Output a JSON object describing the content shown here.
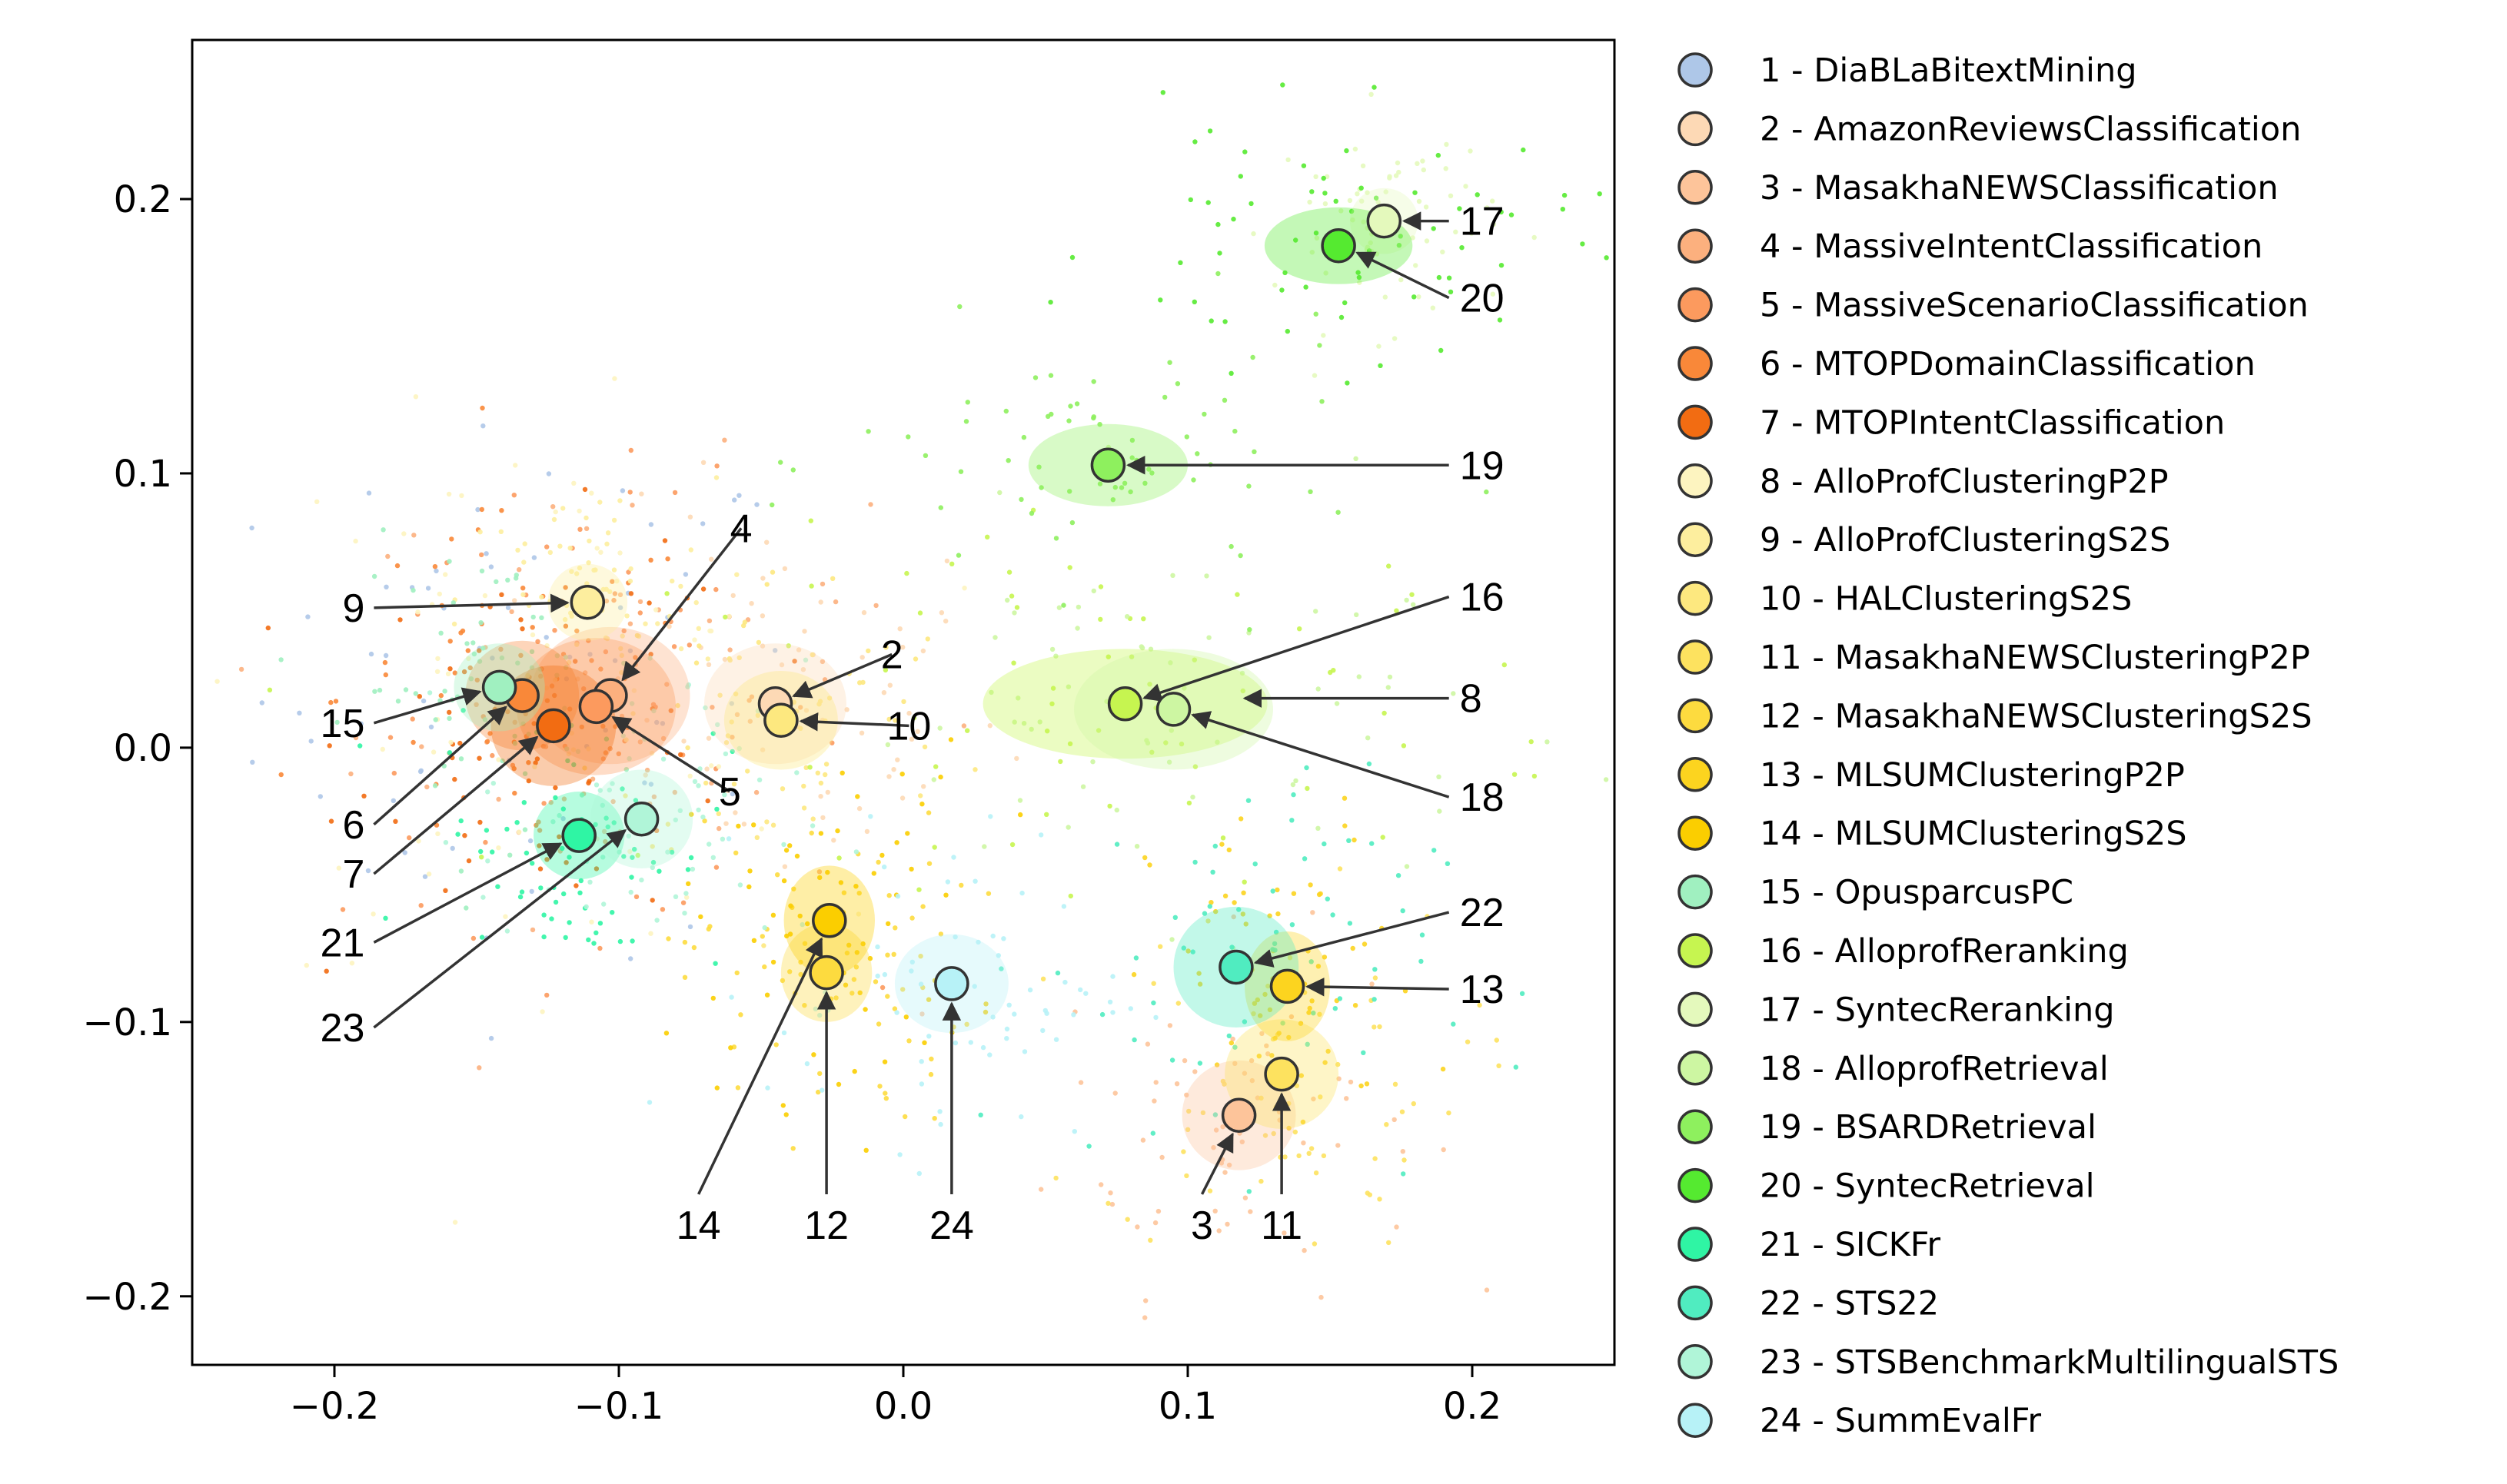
{
  "chart_data": {
    "type": "scatter",
    "title": "",
    "xlabel": "",
    "ylabel": "",
    "xlim": [
      -0.25,
      0.25
    ],
    "ylim": [
      -0.225,
      0.258
    ],
    "xticks": [
      {
        "value": -0.2,
        "label": "−0.2"
      },
      {
        "value": -0.1,
        "label": "−0.1"
      },
      {
        "value": 0.0,
        "label": "0.0"
      },
      {
        "value": 0.1,
        "label": "0.1"
      },
      {
        "value": 0.2,
        "label": "0.2"
      }
    ],
    "yticks": [
      {
        "value": -0.2,
        "label": "−0.2"
      },
      {
        "value": -0.1,
        "label": "−0.1"
      },
      {
        "value": 0.0,
        "label": "0.0"
      },
      {
        "value": 0.1,
        "label": "0.1"
      },
      {
        "value": 0.2,
        "label": "0.2"
      }
    ],
    "legend_position": "outside-right",
    "series": [
      {
        "id": 1,
        "name": "DiaBLaBitextMining",
        "label": "1 - DiaBLaBitextMining",
        "color": "#aec7e8",
        "x": null,
        "y": null
      },
      {
        "id": 2,
        "name": "AmazonReviewsClassification",
        "label": "2 - AmazonReviewsClassification",
        "color": "#fdd9b5",
        "x": -0.045,
        "y": 0.016,
        "sx": 0.025,
        "sy": 0.022
      },
      {
        "id": 3,
        "name": "MasakhaNEWSClassification",
        "label": "3 - MasakhaNEWSClassification",
        "color": "#fdc49a",
        "x": 0.118,
        "y": -0.134,
        "sx": 0.02,
        "sy": 0.02
      },
      {
        "id": 4,
        "name": "MassiveIntentClassification",
        "label": "4 - MassiveIntentClassification",
        "color": "#fcb07e",
        "x": -0.103,
        "y": 0.019,
        "sx": 0.028,
        "sy": 0.025
      },
      {
        "id": 5,
        "name": "MassiveScenarioClassification",
        "label": "5 - MassiveScenarioClassification",
        "color": "#fc9a5e",
        "x": -0.108,
        "y": 0.015,
        "sx": 0.028,
        "sy": 0.025
      },
      {
        "id": 6,
        "name": "MTOPDomainClassification",
        "label": "6 - MTOPDomainClassification",
        "color": "#f98839",
        "x": -0.134,
        "y": 0.019,
        "sx": 0.02,
        "sy": 0.02
      },
      {
        "id": 7,
        "name": "MTOPIntentClassification",
        "label": "7 - MTOPIntentClassification",
        "color": "#f26c12",
        "x": -0.123,
        "y": 0.008,
        "sx": 0.022,
        "sy": 0.022
      },
      {
        "id": 8,
        "name": "AlloProfClusteringP2P",
        "label": "8 - AlloProfClusteringP2P",
        "color": "#fdf4c0",
        "x": null,
        "y": null
      },
      {
        "id": 9,
        "name": "AlloProfClusteringS2S",
        "label": "9 - AlloProfClusteringS2S",
        "color": "#fdee9e",
        "x": -0.111,
        "y": 0.053,
        "sx": 0.014,
        "sy": 0.014
      },
      {
        "id": 10,
        "name": "HALClusteringS2S",
        "label": "10 - HALClusteringS2S",
        "color": "#fde87f",
        "x": -0.043,
        "y": 0.01,
        "sx": 0.02,
        "sy": 0.018
      },
      {
        "id": 11,
        "name": "MasakhaNEWSClusteringP2P",
        "label": "11 - MasakhaNEWSClusteringP2P",
        "color": "#fde25f",
        "x": 0.133,
        "y": -0.119,
        "sx": 0.02,
        "sy": 0.02
      },
      {
        "id": 12,
        "name": "MasakhaNEWSClusteringS2S",
        "label": "12 - MasakhaNEWSClusteringS2S",
        "color": "#fddb3f",
        "x": -0.027,
        "y": -0.082,
        "sx": 0.016,
        "sy": 0.018
      },
      {
        "id": 13,
        "name": "MLSUMClusteringP2P",
        "label": "13 - MLSUMClusteringP2P",
        "color": "#fcd41f",
        "x": 0.135,
        "y": -0.087,
        "sx": 0.015,
        "sy": 0.02
      },
      {
        "id": 14,
        "name": "MLSUMClusteringS2S",
        "label": "14 - MLSUMClusteringS2S",
        "color": "#fbce00",
        "x": -0.026,
        "y": -0.063,
        "sx": 0.016,
        "sy": 0.02
      },
      {
        "id": 15,
        "name": "OpusparcusPC",
        "label": "15 - OpusparcusPC",
        "color": "#a0f0c0",
        "x": -0.142,
        "y": 0.022,
        "sx": 0.016,
        "sy": 0.016
      },
      {
        "id": 16,
        "name": "AlloprofReranking",
        "label": "16 - AlloprofReranking",
        "color": "#c6f550",
        "x": 0.078,
        "y": 0.016,
        "sx": 0.05,
        "sy": 0.02
      },
      {
        "id": 17,
        "name": "SyntecReranking",
        "label": "17 - SyntecReranking",
        "color": "#e4f9bc",
        "x": 0.169,
        "y": 0.192,
        "sx": 0.012,
        "sy": 0.012
      },
      {
        "id": 18,
        "name": "AlloprofRetrieval",
        "label": "18 - AlloprofRetrieval",
        "color": "#cdf6a2",
        "x": 0.095,
        "y": 0.014,
        "sx": 0.035,
        "sy": 0.022
      },
      {
        "id": 19,
        "name": "BSARDRetrieval",
        "label": "19 - BSARDRetrieval",
        "color": "#8ef05e",
        "x": 0.072,
        "y": 0.103,
        "sx": 0.028,
        "sy": 0.015
      },
      {
        "id": 20,
        "name": "SyntecRetrieval",
        "label": "20 - SyntecRetrieval",
        "color": "#55ea30",
        "x": 0.153,
        "y": 0.183,
        "sx": 0.026,
        "sy": 0.014
      },
      {
        "id": 21,
        "name": "SICKFr",
        "label": "21 - SICKFr",
        "color": "#2ff5a4",
        "x": -0.114,
        "y": -0.032,
        "sx": 0.016,
        "sy": 0.016
      },
      {
        "id": 22,
        "name": "STS22",
        "label": "22 - STS22",
        "color": "#50ecc0",
        "x": 0.117,
        "y": -0.08,
        "sx": 0.022,
        "sy": 0.022
      },
      {
        "id": 23,
        "name": "STSBenchmarkMultilingualSTS",
        "label": "23 - STSBenchmarkMultilingualSTS",
        "color": "#b0f5d8",
        "x": -0.092,
        "y": -0.026,
        "sx": 0.018,
        "sy": 0.018
      },
      {
        "id": 24,
        "name": "SummEvalFr",
        "label": "24 - SummEvalFr",
        "color": "#b7f2f7",
        "x": 0.017,
        "y": -0.086,
        "sx": 0.02,
        "sy": 0.018
      }
    ],
    "annotations": [
      {
        "text": "2",
        "target": 2,
        "tx": -0.004,
        "ty": 0.034
      },
      {
        "text": "3",
        "target": 3,
        "tx": 0.105,
        "ty": -0.174
      },
      {
        "text": "4",
        "target": 4,
        "tx": -0.057,
        "ty": 0.08
      },
      {
        "text": "5",
        "target": 5,
        "tx": -0.061,
        "ty": -0.016
      },
      {
        "text": "6",
        "target": 6,
        "tx": -0.198,
        "ty": -0.028
      },
      {
        "text": "7",
        "target": 7,
        "tx": -0.198,
        "ty": -0.046
      },
      {
        "text": "8",
        "target": 8,
        "tx": 0.201,
        "ty": 0.018
      },
      {
        "text": "9",
        "target": 9,
        "tx": -0.198,
        "ty": 0.051
      },
      {
        "text": "10",
        "target": 10,
        "tx": 0.002,
        "ty": 0.008
      },
      {
        "text": "11",
        "target": 11,
        "tx": 0.133,
        "ty": -0.174
      },
      {
        "text": "12",
        "target": 12,
        "tx": -0.027,
        "ty": -0.174
      },
      {
        "text": "13",
        "target": 13,
        "tx": 0.201,
        "ty": -0.088
      },
      {
        "text": "14",
        "target": 14,
        "tx": -0.072,
        "ty": -0.174
      },
      {
        "text": "15",
        "target": 15,
        "tx": -0.198,
        "ty": 0.009
      },
      {
        "text": "16",
        "target": 16,
        "tx": 0.201,
        "ty": 0.055
      },
      {
        "text": "17",
        "target": 17,
        "tx": 0.201,
        "ty": 0.192
      },
      {
        "text": "18",
        "target": 18,
        "tx": 0.201,
        "ty": -0.018
      },
      {
        "text": "19",
        "target": 19,
        "tx": 0.201,
        "ty": 0.103
      },
      {
        "text": "20",
        "target": 20,
        "tx": 0.201,
        "ty": 0.164
      },
      {
        "text": "21",
        "target": 21,
        "tx": -0.198,
        "ty": -0.071
      },
      {
        "text": "22",
        "target": 22,
        "tx": 0.201,
        "ty": -0.06
      },
      {
        "text": "23",
        "target": 23,
        "tx": -0.198,
        "ty": -0.102
      },
      {
        "text": "24",
        "target": 24,
        "tx": 0.017,
        "ty": -0.174
      }
    ]
  }
}
